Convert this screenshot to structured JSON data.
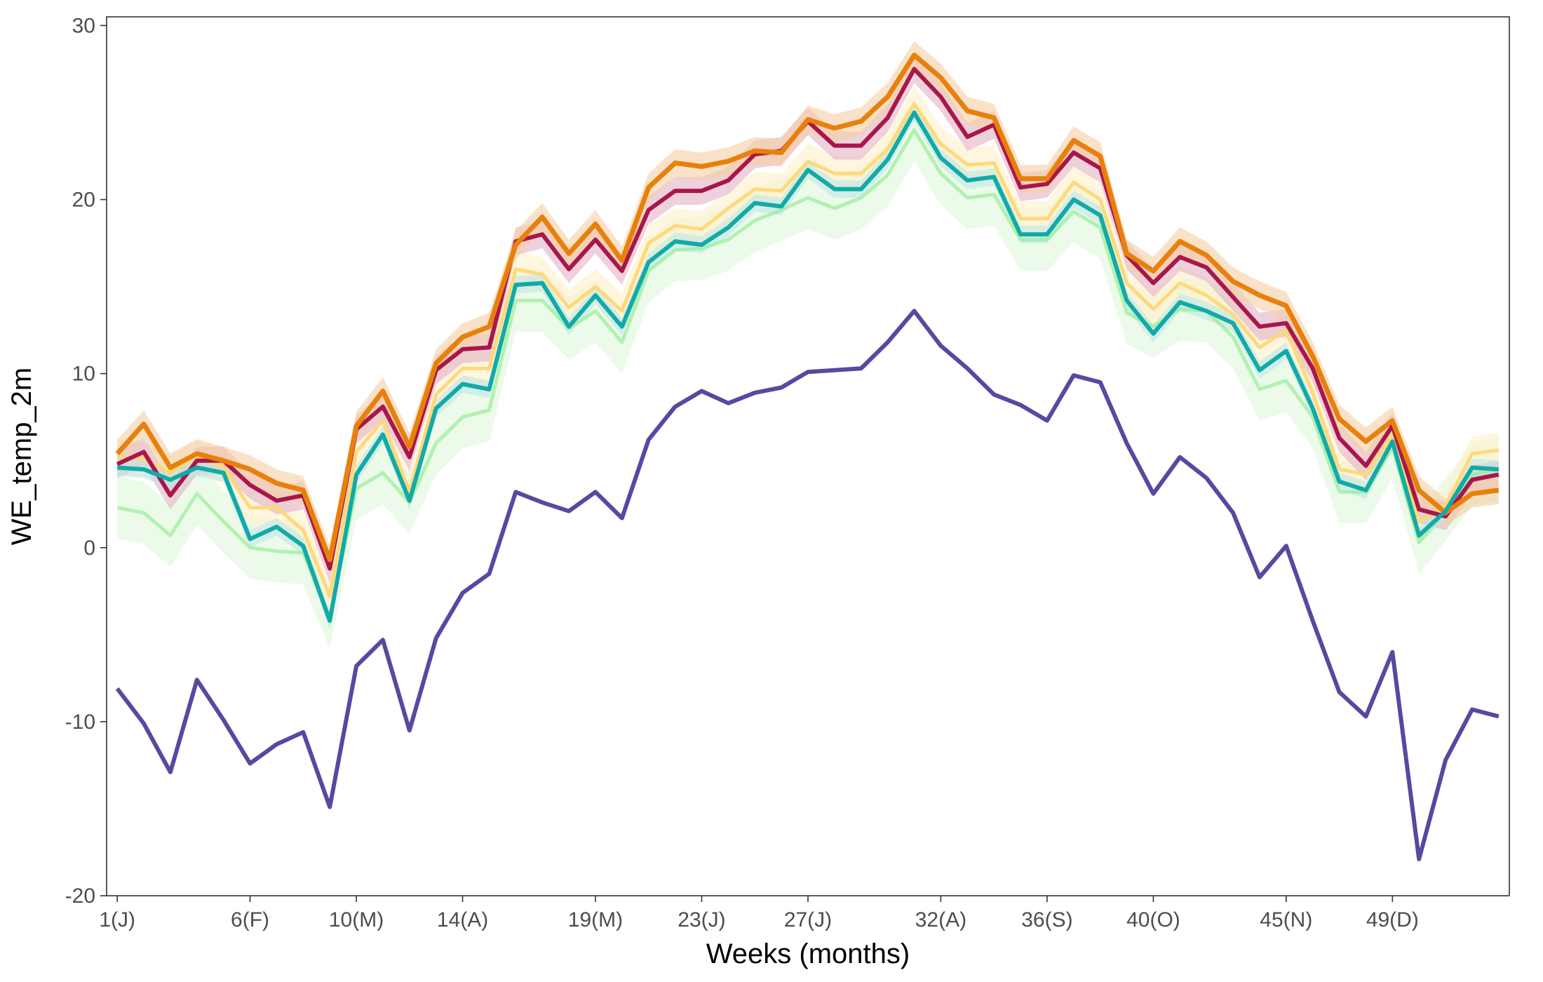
{
  "chart_data": {
    "type": "line",
    "title": "",
    "xlabel": "Weeks (months)",
    "ylabel": "WE_temp_2m",
    "xlim": [
      0.6,
      53.4
    ],
    "ylim": [
      -20,
      30.5
    ],
    "grid": false,
    "legend": "none",
    "x_ticks": [
      {
        "value": 1,
        "label": "1(J)"
      },
      {
        "value": 6,
        "label": "6(F)"
      },
      {
        "value": 10,
        "label": "10(M)"
      },
      {
        "value": 14,
        "label": "14(A)"
      },
      {
        "value": 19,
        "label": "19(M)"
      },
      {
        "value": 23,
        "label": "23(J)"
      },
      {
        "value": 27,
        "label": "27(J)"
      },
      {
        "value": 32,
        "label": "32(A)"
      },
      {
        "value": 36,
        "label": "36(S)"
      },
      {
        "value": 40,
        "label": "40(O)"
      },
      {
        "value": 45,
        "label": "45(N)"
      },
      {
        "value": 49,
        "label": "49(D)"
      }
    ],
    "y_ticks": [
      {
        "value": 30,
        "label": "30"
      },
      {
        "value": 20,
        "label": "20"
      },
      {
        "value": 10,
        "label": "10"
      },
      {
        "value": 0,
        "label": "0"
      },
      {
        "value": -10,
        "label": "-10"
      },
      {
        "value": -20,
        "label": "-20"
      }
    ],
    "x": [
      1,
      2,
      3,
      4,
      5,
      6,
      7,
      8,
      9,
      10,
      11,
      12,
      13,
      14,
      15,
      16,
      17,
      18,
      19,
      20,
      21,
      22,
      23,
      24,
      25,
      26,
      27,
      28,
      29,
      30,
      31,
      32,
      33,
      34,
      35,
      36,
      37,
      38,
      39,
      40,
      41,
      42,
      43,
      44,
      45,
      46,
      47,
      48,
      49,
      50,
      51,
      52,
      53
    ],
    "series": [
      {
        "color": "#90ee90",
        "band_color": "#e0f7dc",
        "band_width": 1.8,
        "width": 5,
        "opacity": 0.65,
        "values": [
          2.3,
          2.0,
          0.7,
          3.1,
          1.5,
          0.0,
          -0.2,
          -0.3,
          -4.0,
          3.4,
          4.3,
          2.6,
          6.0,
          7.5,
          7.9,
          14.2,
          14.2,
          12.6,
          13.6,
          11.8,
          15.9,
          17.1,
          17.2,
          17.7,
          18.8,
          19.4,
          20.1,
          19.5,
          20.1,
          21.4,
          24.0,
          21.5,
          20.1,
          20.3,
          17.7,
          17.7,
          19.3,
          18.4,
          13.5,
          12.7,
          13.7,
          13.6,
          12.1,
          9.1,
          9.6,
          7.5,
          3.2,
          3.2,
          5.8,
          0.3,
          2.2,
          4.2,
          4.5
        ]
      },
      {
        "color": "#ffd97a",
        "band_color": "#fff0cc",
        "band_width": 1.0,
        "width": 5,
        "opacity": 1,
        "values": [
          5.2,
          5.1,
          4.3,
          5.3,
          4.6,
          2.3,
          2.3,
          1.0,
          -2.8,
          5.5,
          7.3,
          3.2,
          8.8,
          10.3,
          10.3,
          16.0,
          15.7,
          13.8,
          15.0,
          13.6,
          17.5,
          18.5,
          18.3,
          19.5,
          20.6,
          20.5,
          22.2,
          21.5,
          21.5,
          22.9,
          25.5,
          23.2,
          22.0,
          22.1,
          18.9,
          18.9,
          21.0,
          20.0,
          15.2,
          13.7,
          15.2,
          14.5,
          13.4,
          11.5,
          12.5,
          8.9,
          4.5,
          4.2,
          6.5,
          1.5,
          2.4,
          5.4,
          5.6
        ]
      },
      {
        "color": "#a8174a",
        "band_color": "#e3b3c4",
        "band_width": 0.8,
        "width": 6,
        "opacity": 1,
        "values": [
          4.8,
          5.5,
          3.0,
          5.0,
          5.0,
          3.6,
          2.7,
          3.0,
          -1.2,
          6.8,
          8.1,
          5.2,
          10.2,
          11.4,
          11.5,
          17.6,
          18.0,
          16.0,
          17.7,
          15.9,
          19.4,
          20.5,
          20.5,
          21.1,
          22.6,
          22.8,
          24.5,
          23.1,
          23.1,
          24.7,
          27.5,
          25.9,
          23.6,
          24.3,
          20.7,
          20.9,
          22.7,
          21.8,
          16.8,
          15.2,
          16.7,
          16.1,
          14.4,
          12.7,
          12.9,
          10.3,
          6.3,
          4.7,
          7.0,
          2.2,
          1.8,
          3.9,
          4.2
        ]
      },
      {
        "color": "#e8800c",
        "band_color": "#f5cfa4",
        "band_width": 0.8,
        "width": 7,
        "opacity": 1,
        "values": [
          5.4,
          7.1,
          4.6,
          5.4,
          5.0,
          4.5,
          3.7,
          3.3,
          -0.7,
          7.0,
          9.0,
          5.8,
          10.6,
          12.1,
          12.7,
          17.4,
          19.0,
          16.9,
          18.6,
          16.5,
          20.7,
          22.1,
          21.9,
          22.2,
          22.8,
          22.7,
          24.6,
          24.1,
          24.5,
          25.9,
          28.3,
          27.0,
          25.1,
          24.7,
          21.2,
          21.2,
          23.4,
          22.5,
          16.9,
          15.9,
          17.6,
          16.8,
          15.3,
          14.5,
          13.9,
          11.0,
          7.4,
          6.1,
          7.3,
          3.3,
          2.0,
          3.1,
          3.3
        ]
      },
      {
        "color": "#12aaa8",
        "band_color": "#bfe6e5",
        "band_width": 0.5,
        "width": 6,
        "opacity": 1,
        "values": [
          4.6,
          4.5,
          3.9,
          4.6,
          4.3,
          0.5,
          1.2,
          0.1,
          -4.2,
          4.2,
          6.5,
          2.7,
          8.0,
          9.4,
          9.1,
          15.1,
          15.2,
          12.7,
          14.5,
          12.7,
          16.4,
          17.6,
          17.4,
          18.4,
          19.8,
          19.6,
          21.7,
          20.6,
          20.6,
          22.3,
          25.0,
          22.4,
          21.1,
          21.3,
          18.0,
          18.0,
          20.0,
          19.1,
          14.2,
          12.3,
          14.1,
          13.6,
          12.9,
          10.2,
          11.3,
          8.0,
          3.8,
          3.3,
          6.1,
          0.7,
          2.1,
          4.6,
          4.5
        ]
      },
      {
        "color": "#5749a0",
        "band_color": "#5749a0",
        "band_width": 0,
        "width": 6,
        "opacity": 1,
        "values": [
          -8.1,
          -10.1,
          -12.9,
          -7.6,
          -9.9,
          -12.4,
          -11.3,
          -10.6,
          -14.9,
          -6.8,
          -5.3,
          -10.5,
          -5.2,
          -2.6,
          -1.5,
          3.2,
          2.6,
          2.1,
          3.2,
          1.7,
          6.2,
          8.1,
          9.0,
          8.3,
          8.9,
          9.2,
          10.1,
          10.2,
          10.3,
          11.8,
          13.6,
          11.6,
          10.3,
          8.8,
          8.2,
          7.3,
          9.9,
          9.5,
          6.0,
          3.1,
          5.2,
          4.0,
          2.0,
          -1.7,
          0.1,
          -4.2,
          -8.3,
          -9.7,
          -6.0,
          -17.9,
          -12.2,
          -9.3,
          -9.7
        ]
      }
    ]
  }
}
